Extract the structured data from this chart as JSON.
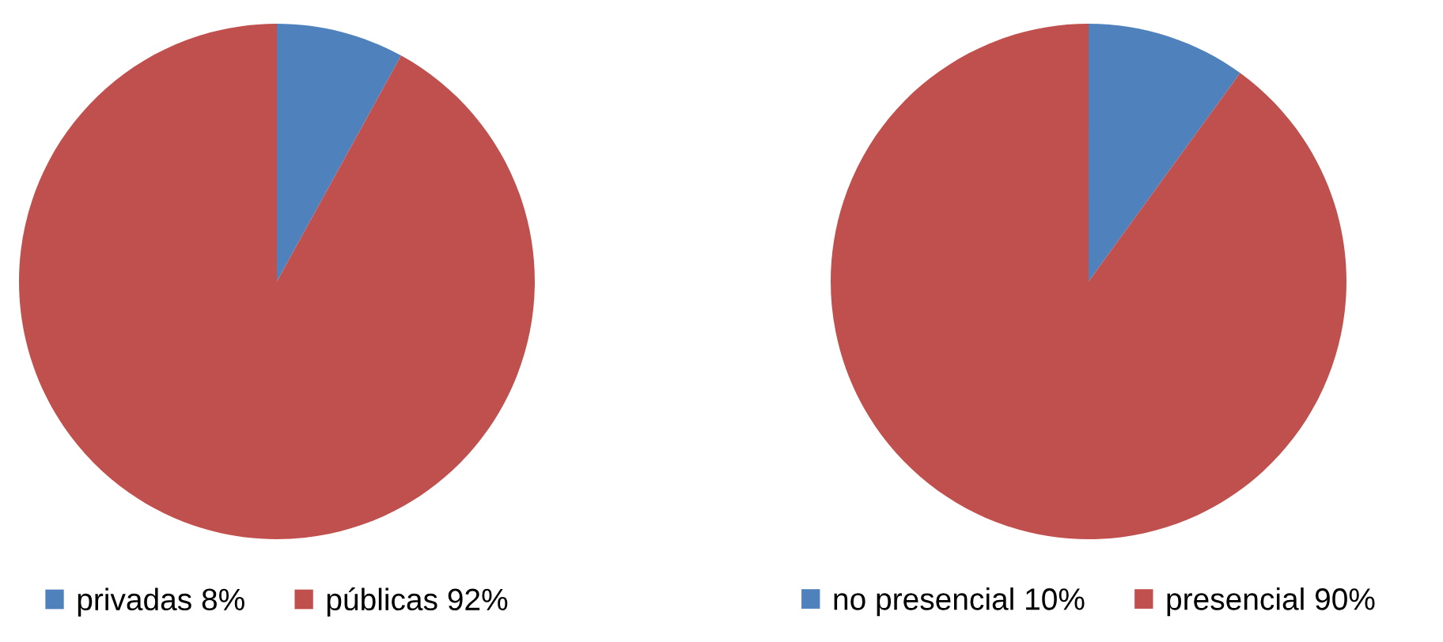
{
  "chart_data": [
    {
      "type": "pie",
      "categories": [
        "privadas 8%",
        "públicas 92%"
      ],
      "values": [
        8,
        92
      ],
      "colors": [
        "#4f81bd",
        "#c0504d"
      ],
      "legend": "bottom"
    },
    {
      "type": "pie",
      "categories": [
        "no presencial 10%",
        "presencial 90%"
      ],
      "values": [
        10,
        90
      ],
      "colors": [
        "#4f81bd",
        "#c0504d"
      ],
      "legend": "bottom"
    }
  ]
}
